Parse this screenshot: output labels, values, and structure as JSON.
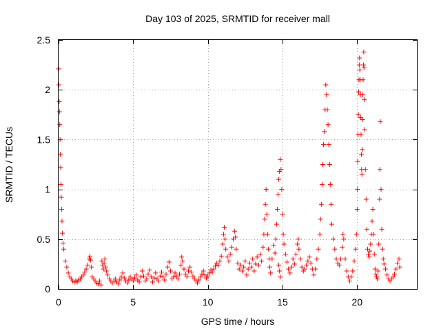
{
  "chart_data": {
    "type": "scatter",
    "title": "Day 103 of 2025, SRMTID for receiver mall",
    "xlabel": "GPS time / hours",
    "ylabel": "SRMTID / TECUs",
    "xlim": [
      0,
      24
    ],
    "ylim": [
      0,
      2.5
    ],
    "xticks": [
      0,
      5,
      10,
      15,
      20
    ],
    "yticks": [
      0,
      0.5,
      1,
      1.5,
      2,
      2.5
    ],
    "xtick_labels": [
      "0",
      "5",
      "10",
      "15",
      "20"
    ],
    "ytick_labels": [
      "0",
      "0.5",
      "1",
      "1.5",
      "2",
      "2.5"
    ],
    "grid": true,
    "marker": "+",
    "color": "#ff0000",
    "series": [
      {
        "name": "SRMTID",
        "points": [
          [
            0.0,
            2.21
          ],
          [
            0.02,
            2.05
          ],
          [
            0.04,
            1.88
          ],
          [
            0.06,
            1.78
          ],
          [
            0.08,
            1.65
          ],
          [
            0.1,
            1.5
          ],
          [
            0.12,
            1.35
          ],
          [
            0.14,
            1.22
          ],
          [
            0.16,
            1.05
          ],
          [
            0.18,
            0.92
          ],
          [
            0.2,
            0.8
          ],
          [
            0.23,
            0.68
          ],
          [
            0.26,
            0.56
          ],
          [
            0.3,
            0.46
          ],
          [
            0.35,
            0.4
          ],
          [
            0.45,
            0.28
          ],
          [
            0.55,
            0.22
          ],
          [
            0.65,
            0.16
          ],
          [
            0.75,
            0.12
          ],
          [
            0.85,
            0.1
          ],
          [
            0.95,
            0.08
          ],
          [
            1.05,
            0.07
          ],
          [
            1.15,
            0.08
          ],
          [
            1.25,
            0.07
          ],
          [
            1.35,
            0.09
          ],
          [
            1.45,
            0.1
          ],
          [
            1.55,
            0.12
          ],
          [
            1.65,
            0.14
          ],
          [
            1.75,
            0.17
          ],
          [
            1.85,
            0.2
          ],
          [
            1.95,
            0.24
          ],
          [
            2.05,
            0.3
          ],
          [
            2.1,
            0.33
          ],
          [
            2.15,
            0.29
          ],
          [
            2.2,
            0.22
          ],
          [
            2.25,
            0.12
          ],
          [
            2.35,
            0.1
          ],
          [
            2.45,
            0.08
          ],
          [
            2.55,
            0.06
          ],
          [
            2.65,
            0.05
          ],
          [
            2.75,
            0.08
          ],
          [
            2.85,
            0.04
          ],
          [
            2.9,
            0.28
          ],
          [
            2.95,
            0.24
          ],
          [
            3.0,
            0.2
          ],
          [
            3.05,
            0.26
          ],
          [
            3.1,
            0.3
          ],
          [
            3.15,
            0.22
          ],
          [
            3.2,
            0.18
          ],
          [
            3.3,
            0.14
          ],
          [
            3.4,
            0.1
          ],
          [
            3.5,
            0.08
          ],
          [
            3.6,
            0.06
          ],
          [
            3.7,
            0.08
          ],
          [
            3.8,
            0.1
          ],
          [
            3.9,
            0.07
          ],
          [
            4.0,
            0.05
          ],
          [
            4.1,
            0.09
          ],
          [
            4.2,
            0.12
          ],
          [
            4.3,
            0.16
          ],
          [
            4.4,
            0.11
          ],
          [
            4.5,
            0.08
          ],
          [
            4.6,
            0.06
          ],
          [
            4.7,
            0.09
          ],
          [
            4.8,
            0.12
          ],
          [
            4.9,
            0.1
          ],
          [
            5.0,
            0.08
          ],
          [
            5.1,
            0.11
          ],
          [
            5.2,
            0.14
          ],
          [
            5.3,
            0.09
          ],
          [
            5.4,
            0.07
          ],
          [
            5.5,
            0.12
          ],
          [
            5.6,
            0.18
          ],
          [
            5.7,
            0.13
          ],
          [
            5.8,
            0.08
          ],
          [
            5.9,
            0.1
          ],
          [
            6.0,
            0.15
          ],
          [
            6.1,
            0.19
          ],
          [
            6.2,
            0.12
          ],
          [
            6.3,
            0.07
          ],
          [
            6.4,
            0.11
          ],
          [
            6.5,
            0.16
          ],
          [
            6.6,
            0.1
          ],
          [
            6.7,
            0.08
          ],
          [
            6.8,
            0.13
          ],
          [
            6.9,
            0.17
          ],
          [
            7.0,
            0.12
          ],
          [
            7.1,
            0.09
          ],
          [
            7.2,
            0.15
          ],
          [
            7.3,
            0.22
          ],
          [
            7.4,
            0.27
          ],
          [
            7.5,
            0.18
          ],
          [
            7.6,
            0.1
          ],
          [
            7.7,
            0.12
          ],
          [
            7.8,
            0.16
          ],
          [
            7.9,
            0.13
          ],
          [
            8.0,
            0.1
          ],
          [
            8.1,
            0.15
          ],
          [
            8.2,
            0.24
          ],
          [
            8.25,
            0.32
          ],
          [
            8.3,
            0.28
          ],
          [
            8.4,
            0.2
          ],
          [
            8.5,
            0.15
          ],
          [
            8.6,
            0.12
          ],
          [
            8.7,
            0.18
          ],
          [
            8.8,
            0.22
          ],
          [
            8.9,
            0.17
          ],
          [
            9.0,
            0.13
          ],
          [
            9.1,
            0.1
          ],
          [
            9.2,
            0.08
          ],
          [
            9.3,
            0.06
          ],
          [
            9.4,
            0.09
          ],
          [
            9.5,
            0.12
          ],
          [
            9.6,
            0.15
          ],
          [
            9.7,
            0.18
          ],
          [
            9.8,
            0.14
          ],
          [
            9.9,
            0.11
          ],
          [
            10.0,
            0.13
          ],
          [
            10.1,
            0.16
          ],
          [
            10.2,
            0.19
          ],
          [
            10.3,
            0.17
          ],
          [
            10.4,
            0.2
          ],
          [
            10.5,
            0.23
          ],
          [
            10.6,
            0.26
          ],
          [
            10.7,
            0.24
          ],
          [
            10.8,
            0.28
          ],
          [
            10.9,
            0.33
          ],
          [
            11.0,
            0.45
          ],
          [
            11.05,
            0.55
          ],
          [
            11.1,
            0.62
          ],
          [
            11.15,
            0.5
          ],
          [
            11.2,
            0.4
          ],
          [
            11.3,
            0.32
          ],
          [
            11.4,
            0.28
          ],
          [
            11.5,
            0.35
          ],
          [
            11.6,
            0.42
          ],
          [
            11.7,
            0.5
          ],
          [
            11.8,
            0.58
          ],
          [
            11.85,
            0.52
          ],
          [
            11.9,
            0.4
          ],
          [
            12.0,
            0.26
          ],
          [
            12.1,
            0.2
          ],
          [
            12.2,
            0.24
          ],
          [
            12.3,
            0.18
          ],
          [
            12.4,
            0.22
          ],
          [
            12.5,
            0.28
          ],
          [
            12.6,
            0.14
          ],
          [
            12.7,
            0.2
          ],
          [
            12.8,
            0.26
          ],
          [
            12.9,
            0.22
          ],
          [
            13.0,
            0.3
          ],
          [
            13.1,
            0.18
          ],
          [
            13.2,
            0.25
          ],
          [
            13.3,
            0.32
          ],
          [
            13.4,
            0.24
          ],
          [
            13.5,
            0.35
          ],
          [
            13.6,
            0.28
          ],
          [
            13.7,
            0.42
          ],
          [
            13.75,
            0.55
          ],
          [
            13.8,
            0.7
          ],
          [
            13.85,
            0.85
          ],
          [
            13.9,
            1.0
          ],
          [
            13.95,
            0.75
          ],
          [
            14.0,
            0.55
          ],
          [
            14.05,
            0.4
          ],
          [
            14.1,
            0.3
          ],
          [
            14.15,
            0.22
          ],
          [
            14.2,
            0.16
          ],
          [
            14.3,
            0.3
          ],
          [
            14.4,
            0.44
          ],
          [
            14.5,
            0.36
          ],
          [
            14.55,
            0.5
          ],
          [
            14.6,
            0.65
          ],
          [
            14.65,
            0.8
          ],
          [
            14.7,
            0.95
          ],
          [
            14.75,
            1.1
          ],
          [
            14.8,
            1.18
          ],
          [
            14.85,
            1.3
          ],
          [
            14.9,
            1.2
          ],
          [
            14.95,
            1.0
          ],
          [
            15.0,
            0.75
          ],
          [
            15.05,
            0.55
          ],
          [
            14.75,
            0.24
          ],
          [
            14.8,
            0.18
          ],
          [
            14.85,
            0.12
          ],
          [
            15.1,
            0.45
          ],
          [
            15.2,
            0.35
          ],
          [
            15.3,
            0.27
          ],
          [
            15.4,
            0.2
          ],
          [
            15.5,
            0.16
          ],
          [
            15.6,
            0.22
          ],
          [
            15.7,
            0.3
          ],
          [
            15.8,
            0.25
          ],
          [
            15.9,
            0.35
          ],
          [
            16.0,
            0.45
          ],
          [
            16.05,
            0.5
          ],
          [
            16.1,
            0.4
          ],
          [
            16.2,
            0.3
          ],
          [
            16.3,
            0.22
          ],
          [
            16.4,
            0.18
          ],
          [
            16.5,
            0.2
          ],
          [
            16.6,
            0.24
          ],
          [
            16.7,
            0.28
          ],
          [
            16.8,
            0.32
          ],
          [
            16.9,
            0.26
          ],
          [
            17.0,
            0.2
          ],
          [
            17.1,
            0.14
          ],
          [
            17.2,
            0.2
          ],
          [
            17.3,
            0.3
          ],
          [
            17.4,
            0.4
          ],
          [
            17.5,
            0.55
          ],
          [
            17.55,
            0.7
          ],
          [
            17.6,
            0.85
          ],
          [
            17.65,
            1.05
          ],
          [
            17.7,
            1.25
          ],
          [
            17.75,
            1.45
          ],
          [
            17.8,
            1.58
          ],
          [
            17.85,
            1.8
          ],
          [
            17.9,
            2.05
          ],
          [
            17.95,
            1.95
          ],
          [
            18.0,
            1.8
          ],
          [
            18.05,
            1.65
          ],
          [
            18.1,
            1.45
          ],
          [
            18.15,
            1.25
          ],
          [
            18.2,
            1.05
          ],
          [
            18.25,
            0.85
          ],
          [
            18.3,
            0.65
          ],
          [
            18.4,
            0.5
          ],
          [
            18.5,
            0.4
          ],
          [
            18.6,
            0.3
          ],
          [
            18.7,
            0.26
          ],
          [
            18.8,
            0.24
          ],
          [
            18.9,
            0.3
          ],
          [
            19.0,
            0.42
          ],
          [
            19.05,
            0.55
          ],
          [
            19.1,
            0.5
          ],
          [
            19.2,
            0.3
          ],
          [
            19.3,
            0.18
          ],
          [
            19.4,
            0.12
          ],
          [
            19.5,
            0.08
          ],
          [
            19.6,
            0.12
          ],
          [
            19.7,
            0.18
          ],
          [
            19.8,
            0.28
          ],
          [
            19.9,
            0.4
          ],
          [
            19.95,
            0.55
          ],
          [
            20.0,
            0.8
          ],
          [
            20.02,
            1.0
          ],
          [
            20.04,
            1.28
          ],
          [
            20.06,
            1.55
          ],
          [
            20.08,
            1.75
          ],
          [
            20.1,
            1.98
          ],
          [
            20.12,
            2.1
          ],
          [
            20.14,
            2.25
          ],
          [
            20.16,
            2.32
          ],
          [
            20.18,
            2.2
          ],
          [
            20.2,
            2.1
          ],
          [
            20.22,
            1.95
          ],
          [
            20.24,
            1.72
          ],
          [
            20.26,
            1.55
          ],
          [
            20.28,
            1.35
          ],
          [
            20.3,
            1.2
          ],
          [
            20.32,
            1.15
          ],
          [
            20.34,
            1.4
          ],
          [
            20.36,
            1.7
          ],
          [
            20.38,
            1.95
          ],
          [
            20.4,
            2.1
          ],
          [
            20.42,
            2.25
          ],
          [
            20.44,
            2.38
          ],
          [
            20.46,
            2.22
          ],
          [
            20.48,
            1.9
          ],
          [
            20.5,
            1.6
          ],
          [
            20.55,
            1.2
          ],
          [
            20.6,
            0.9
          ],
          [
            20.65,
            0.6
          ],
          [
            20.7,
            0.4
          ],
          [
            20.75,
            0.35
          ],
          [
            20.8,
            0.32
          ],
          [
            20.85,
            0.38
          ],
          [
            20.9,
            0.45
          ],
          [
            20.95,
            0.55
          ],
          [
            21.0,
            0.68
          ],
          [
            21.05,
            0.8
          ],
          [
            21.1,
            0.55
          ],
          [
            21.15,
            0.35
          ],
          [
            21.2,
            0.2
          ],
          [
            21.25,
            0.15
          ],
          [
            21.3,
            0.12
          ],
          [
            21.35,
            0.1
          ],
          [
            21.4,
            0.18
          ],
          [
            21.45,
            0.45
          ],
          [
            21.5,
            0.9
          ],
          [
            21.52,
            1.2
          ],
          [
            21.55,
            1.68
          ],
          [
            21.6,
            1.0
          ],
          [
            21.65,
            0.6
          ],
          [
            21.7,
            0.4
          ],
          [
            21.75,
            0.3
          ],
          [
            21.8,
            0.25
          ],
          [
            21.9,
            0.2
          ],
          [
            22.0,
            0.14
          ],
          [
            22.1,
            0.1
          ],
          [
            22.2,
            0.08
          ],
          [
            22.3,
            0.1
          ],
          [
            22.4,
            0.12
          ],
          [
            22.5,
            0.15
          ],
          [
            22.6,
            0.2
          ],
          [
            22.7,
            0.26
          ],
          [
            22.8,
            0.3
          ],
          [
            22.85,
            0.22
          ]
        ]
      }
    ]
  }
}
